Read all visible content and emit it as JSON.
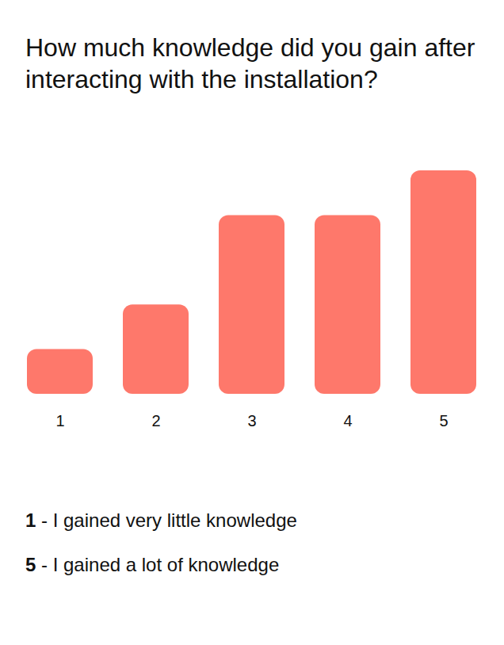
{
  "chart_data": {
    "type": "bar",
    "title": "How much knowledge did you gain after interacting with the installation?",
    "categories": [
      "1",
      "2",
      "3",
      "4",
      "5"
    ],
    "values": [
      1,
      2,
      4,
      4,
      5
    ],
    "color": "#fe786b",
    "ylim": [
      0,
      5
    ],
    "tick_labels": "x",
    "grid": false,
    "annotations": [
      "1 - I gained very little knowledge",
      "5 - I gained a lot of knowledge"
    ]
  }
}
